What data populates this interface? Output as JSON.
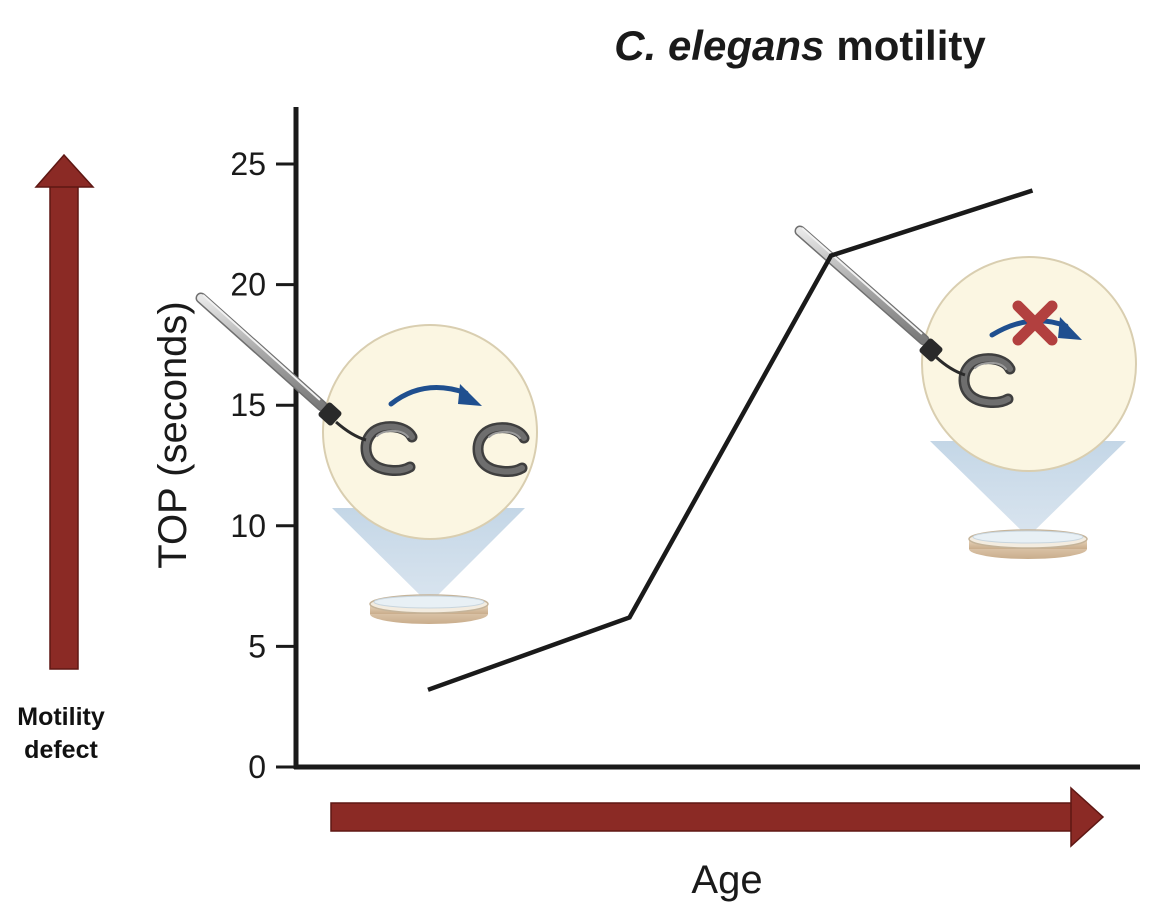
{
  "chart_data": {
    "type": "line",
    "title": {
      "italic": "C. elegans",
      "rest": "motility"
    },
    "xlabel": "Age",
    "ylabel": "TOP (seconds)",
    "ylim": [
      0,
      27
    ],
    "yticks": [
      "0",
      "5",
      "10",
      "15",
      "20",
      "25"
    ],
    "xticks": [],
    "grid": false,
    "series": [
      {
        "x": [
          1,
          2,
          3,
          4
        ],
        "y": [
          3.2,
          6.2,
          21.2,
          23.9
        ]
      }
    ],
    "annotations": {
      "motility_label_line1": "Motility",
      "motility_label_line2": "defect"
    }
  },
  "colors": {
    "line": "#1a1a1a",
    "axis": "#1a1a1a",
    "arrow": "#8b2a25",
    "arrow_outline": "#5e1713",
    "dish_view_fill": "#fbf6e2",
    "dish_view_stroke": "#d9ceb0",
    "cone": "#b9cfe2",
    "worm": "#545454",
    "motion_arrow": "#1f4f8f",
    "cross": "#b2403f"
  },
  "icons": {
    "left_illustration": "worm-moving-illustration",
    "right_illustration": "worm-stuck-illustration",
    "vertical_arrow": "arrow-up-icon",
    "horizontal_arrow": "arrow-right-icon",
    "cross": "x-mark-icon"
  }
}
